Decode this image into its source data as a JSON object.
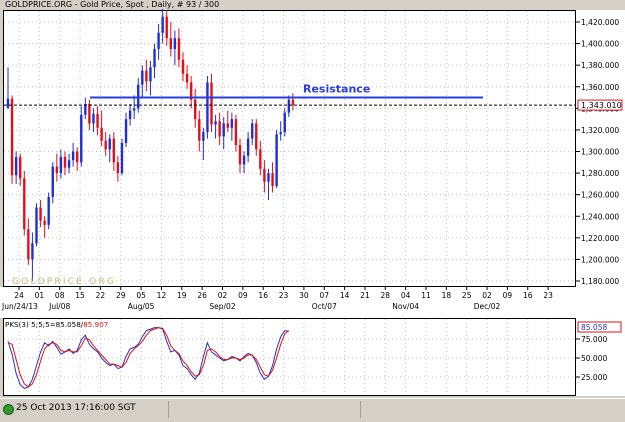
{
  "header": {
    "title": "GOLDPRICE.ORG - Gold Price, Spot , Daily, # 93 / 300"
  },
  "watermark": "GOLDPRICE.ORG",
  "status": {
    "datetime": "25 Oct 2013 17:16:00 SGT"
  },
  "colors": {
    "up_bar": "#1f2fd4",
    "down_bar": "#e0101a",
    "resistance": "#2a3be0",
    "indicator_line1": "#2232c8",
    "indicator_line2": "#e01010",
    "price_label_border": "#e0101a",
    "status_icon": "#2f9a2f"
  },
  "chart_data": [
    {
      "type": "ohlc",
      "title": "GOLDPRICE.ORG - Gold Price, Spot , Daily, # 93 / 300",
      "instrument": "Gold Price, Spot",
      "timeframe": "Daily",
      "ylim": [
        1170,
        1440
      ],
      "yticks": [
        "1,420.000",
        "1,400.000",
        "1,380.000",
        "1,360.000",
        "1,340.000",
        "1,320.000",
        "1,300.000",
        "1,280.000",
        "1,260.000",
        "1,240.000",
        "1,220.000",
        "1,200.000",
        "1,180.000"
      ],
      "x_tick_labels": [
        "24",
        "01",
        "08",
        "15",
        "22",
        "29",
        "05",
        "12",
        "19",
        "26",
        "02",
        "09",
        "16",
        "23",
        "30",
        "07",
        "14",
        "21",
        "28",
        "04",
        "11",
        "18",
        "25",
        "02",
        "09",
        "16",
        "23"
      ],
      "x_month_labels": [
        "Jun/24/13",
        "Jul/08",
        "Aug/05",
        "Sep/02",
        "Oct/07",
        "Nov/04",
        "Dec/02"
      ],
      "current_price_label": "1,343.010",
      "current_price": 1343.01,
      "annotation": {
        "text": "Resistance",
        "level": 1350
      },
      "bars": [
        {
          "o": 1340,
          "h": 1378,
          "l": 1340,
          "c": 1349
        },
        {
          "o": 1349,
          "h": 1352,
          "l": 1270,
          "c": 1278
        },
        {
          "o": 1278,
          "h": 1300,
          "l": 1270,
          "c": 1295
        },
        {
          "o": 1295,
          "h": 1298,
          "l": 1268,
          "c": 1275
        },
        {
          "o": 1275,
          "h": 1282,
          "l": 1222,
          "c": 1228
        },
        {
          "o": 1228,
          "h": 1238,
          "l": 1195,
          "c": 1200
        },
        {
          "o": 1200,
          "h": 1225,
          "l": 1180,
          "c": 1215
        },
        {
          "o": 1215,
          "h": 1252,
          "l": 1212,
          "c": 1248
        },
        {
          "o": 1248,
          "h": 1255,
          "l": 1230,
          "c": 1236
        },
        {
          "o": 1236,
          "h": 1240,
          "l": 1220,
          "c": 1232
        },
        {
          "o": 1232,
          "h": 1262,
          "l": 1228,
          "c": 1258
        },
        {
          "o": 1258,
          "h": 1290,
          "l": 1252,
          "c": 1286
        },
        {
          "o": 1286,
          "h": 1298,
          "l": 1272,
          "c": 1280
        },
        {
          "o": 1280,
          "h": 1302,
          "l": 1275,
          "c": 1295
        },
        {
          "o": 1295,
          "h": 1300,
          "l": 1278,
          "c": 1285
        },
        {
          "o": 1285,
          "h": 1298,
          "l": 1280,
          "c": 1292
        },
        {
          "o": 1292,
          "h": 1308,
          "l": 1286,
          "c": 1300
        },
        {
          "o": 1300,
          "h": 1304,
          "l": 1282,
          "c": 1290
        },
        {
          "o": 1290,
          "h": 1342,
          "l": 1286,
          "c": 1334
        },
        {
          "o": 1334,
          "h": 1350,
          "l": 1330,
          "c": 1344
        },
        {
          "o": 1344,
          "h": 1348,
          "l": 1320,
          "c": 1326
        },
        {
          "o": 1326,
          "h": 1340,
          "l": 1318,
          "c": 1335
        },
        {
          "o": 1335,
          "h": 1342,
          "l": 1315,
          "c": 1322
        },
        {
          "o": 1322,
          "h": 1338,
          "l": 1305,
          "c": 1310
        },
        {
          "o": 1310,
          "h": 1318,
          "l": 1296,
          "c": 1302
        },
        {
          "o": 1302,
          "h": 1316,
          "l": 1290,
          "c": 1312
        },
        {
          "o": 1312,
          "h": 1318,
          "l": 1282,
          "c": 1290
        },
        {
          "o": 1290,
          "h": 1296,
          "l": 1272,
          "c": 1280
        },
        {
          "o": 1280,
          "h": 1312,
          "l": 1278,
          "c": 1308
        },
        {
          "o": 1308,
          "h": 1336,
          "l": 1304,
          "c": 1330
        },
        {
          "o": 1330,
          "h": 1344,
          "l": 1324,
          "c": 1338
        },
        {
          "o": 1338,
          "h": 1352,
          "l": 1330,
          "c": 1340
        },
        {
          "o": 1340,
          "h": 1368,
          "l": 1336,
          "c": 1362
        },
        {
          "o": 1362,
          "h": 1380,
          "l": 1350,
          "c": 1375
        },
        {
          "o": 1375,
          "h": 1385,
          "l": 1356,
          "c": 1365
        },
        {
          "o": 1365,
          "h": 1384,
          "l": 1352,
          "c": 1378
        },
        {
          "o": 1378,
          "h": 1400,
          "l": 1368,
          "c": 1395
        },
        {
          "o": 1395,
          "h": 1418,
          "l": 1385,
          "c": 1410
        },
        {
          "o": 1410,
          "h": 1432,
          "l": 1400,
          "c": 1425
        },
        {
          "o": 1425,
          "h": 1430,
          "l": 1398,
          "c": 1405
        },
        {
          "o": 1405,
          "h": 1420,
          "l": 1388,
          "c": 1395
        },
        {
          "o": 1395,
          "h": 1412,
          "l": 1380,
          "c": 1405
        },
        {
          "o": 1405,
          "h": 1414,
          "l": 1378,
          "c": 1385
        },
        {
          "o": 1385,
          "h": 1392,
          "l": 1365,
          "c": 1372
        },
        {
          "o": 1372,
          "h": 1380,
          "l": 1358,
          "c": 1364
        },
        {
          "o": 1364,
          "h": 1370,
          "l": 1340,
          "c": 1348
        },
        {
          "o": 1348,
          "h": 1358,
          "l": 1322,
          "c": 1330
        },
        {
          "o": 1330,
          "h": 1338,
          "l": 1300,
          "c": 1310
        },
        {
          "o": 1310,
          "h": 1322,
          "l": 1292,
          "c": 1318
        },
        {
          "o": 1318,
          "h": 1370,
          "l": 1312,
          "c": 1364
        },
        {
          "o": 1364,
          "h": 1372,
          "l": 1318,
          "c": 1325
        },
        {
          "o": 1325,
          "h": 1334,
          "l": 1312,
          "c": 1328
        },
        {
          "o": 1328,
          "h": 1336,
          "l": 1306,
          "c": 1314
        },
        {
          "o": 1314,
          "h": 1332,
          "l": 1302,
          "c": 1326
        },
        {
          "o": 1326,
          "h": 1338,
          "l": 1318,
          "c": 1322
        },
        {
          "o": 1322,
          "h": 1336,
          "l": 1310,
          "c": 1330
        },
        {
          "o": 1330,
          "h": 1334,
          "l": 1300,
          "c": 1306
        },
        {
          "o": 1306,
          "h": 1312,
          "l": 1280,
          "c": 1288
        },
        {
          "o": 1288,
          "h": 1300,
          "l": 1280,
          "c": 1296
        },
        {
          "o": 1296,
          "h": 1318,
          "l": 1290,
          "c": 1312
        },
        {
          "o": 1312,
          "h": 1330,
          "l": 1306,
          "c": 1326
        },
        {
          "o": 1326,
          "h": 1330,
          "l": 1296,
          "c": 1302
        },
        {
          "o": 1302,
          "h": 1310,
          "l": 1278,
          "c": 1284
        },
        {
          "o": 1284,
          "h": 1292,
          "l": 1262,
          "c": 1272
        },
        {
          "o": 1272,
          "h": 1284,
          "l": 1255,
          "c": 1280
        },
        {
          "o": 1280,
          "h": 1290,
          "l": 1262,
          "c": 1268
        },
        {
          "o": 1268,
          "h": 1320,
          "l": 1266,
          "c": 1316
        },
        {
          "o": 1316,
          "h": 1328,
          "l": 1310,
          "c": 1318
        },
        {
          "o": 1318,
          "h": 1340,
          "l": 1314,
          "c": 1336
        },
        {
          "o": 1336,
          "h": 1352,
          "l": 1332,
          "c": 1348
        },
        {
          "o": 1348,
          "h": 1354,
          "l": 1338,
          "c": 1343
        }
      ]
    },
    {
      "type": "line",
      "title": "PKS(3) 5;5;5=85.058/85.907",
      "title_part1": "PKS(3) 5;5;5=85.058/",
      "title_part2": "85.907",
      "ylim": [
        0,
        100
      ],
      "yticks": [
        "75.000",
        "50.000",
        "25.000"
      ],
      "current_value_label": "85.058",
      "series": [
        {
          "values": [
            72,
            55,
            30,
            15,
            10,
            12,
            22,
            40,
            58,
            70,
            66,
            72,
            64,
            55,
            58,
            62,
            56,
            60,
            74,
            80,
            68,
            62,
            58,
            50,
            44,
            40,
            42,
            36,
            38,
            52,
            62,
            64,
            68,
            78,
            86,
            88,
            90,
            90,
            88,
            72,
            58,
            60,
            54,
            40,
            36,
            28,
            22,
            30,
            52,
            70,
            58,
            54,
            50,
            46,
            48,
            52,
            50,
            46,
            52,
            56,
            54,
            44,
            30,
            22,
            26,
            40,
            62,
            78,
            86,
            85
          ]
        },
        {
          "values": [
            70,
            68,
            48,
            28,
            16,
            12,
            16,
            28,
            46,
            62,
            68,
            70,
            68,
            60,
            58,
            60,
            58,
            58,
            66,
            76,
            74,
            66,
            60,
            54,
            48,
            42,
            42,
            40,
            38,
            44,
            56,
            62,
            66,
            72,
            80,
            86,
            88,
            90,
            89,
            80,
            66,
            60,
            56,
            46,
            40,
            32,
            26,
            28,
            40,
            60,
            62,
            58,
            52,
            48,
            48,
            50,
            50,
            48,
            50,
            54,
            54,
            48,
            38,
            28,
            26,
            34,
            50,
            68,
            82,
            86
          ]
        }
      ]
    }
  ]
}
